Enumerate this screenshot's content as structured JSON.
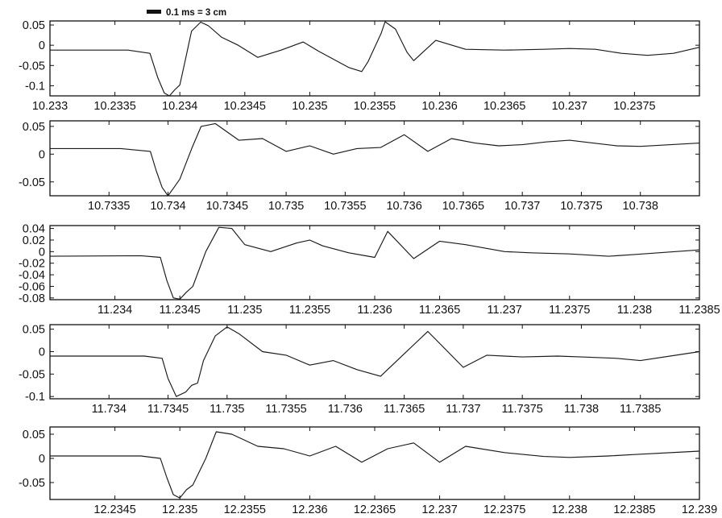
{
  "scale_bar": {
    "label": "0.1 ms = 3 cm"
  },
  "chart_data": [
    {
      "type": "line",
      "xlim": [
        10.233,
        10.238
      ],
      "ylim": [
        -0.125,
        0.06
      ],
      "xticks": [
        10.233,
        10.2335,
        10.234,
        10.2345,
        10.235,
        10.2355,
        10.236,
        10.2365,
        10.237,
        10.2375
      ],
      "xtick_labels": [
        "10.233",
        "10.2335",
        "10.234",
        "10.2345",
        "10.235",
        "10.2355",
        "10.236",
        "10.2365",
        "10.237",
        "10.2375"
      ],
      "yticks": [
        0.05,
        0,
        -0.05,
        -0.1
      ],
      "ytick_labels": [
        "0.05",
        "0",
        "-0.05",
        "-0.1"
      ],
      "series": [
        {
          "x": [
            10.233,
            10.2336,
            10.23377,
            10.23383,
            10.23388,
            10.23392,
            10.23396,
            10.234,
            10.23404,
            10.23409,
            10.23416,
            10.23422,
            10.23432,
            10.23445,
            10.2346,
            10.23478,
            10.23495,
            10.23507,
            10.2353,
            10.2354,
            10.23545,
            10.23555,
            10.23558,
            10.23566,
            10.23575,
            10.2358,
            10.23597,
            10.2362,
            10.2365,
            10.2368,
            10.237,
            10.2372,
            10.2374,
            10.2376,
            10.2378,
            10.238
          ],
          "y": [
            -0.012,
            -0.012,
            -0.02,
            -0.08,
            -0.118,
            -0.125,
            -0.11,
            -0.098,
            -0.04,
            0.035,
            0.057,
            0.048,
            0.02,
            0.0,
            -0.03,
            -0.012,
            0.008,
            -0.015,
            -0.055,
            -0.065,
            -0.04,
            0.03,
            0.058,
            0.04,
            -0.018,
            -0.038,
            0.012,
            -0.01,
            -0.012,
            -0.01,
            -0.008,
            -0.01,
            -0.02,
            -0.025,
            -0.02,
            -0.005
          ]
        }
      ]
    },
    {
      "type": "line",
      "xlim": [
        10.733,
        10.7385
      ],
      "ylim": [
        -0.075,
        0.06
      ],
      "xticks": [
        10.7335,
        10.734,
        10.7345,
        10.735,
        10.7355,
        10.736,
        10.7365,
        10.737,
        10.7375,
        10.738
      ],
      "xtick_labels": [
        "10.7335",
        "10.734",
        "10.7345",
        "10.735",
        "10.7355",
        "10.736",
        "10.7365",
        "10.737",
        "10.7375",
        "10.738"
      ],
      "yticks": [
        0.05,
        0,
        -0.05
      ],
      "ytick_labels": [
        "0.05",
        "0",
        "-0.05"
      ],
      "series": [
        {
          "x": [
            10.733,
            10.7336,
            10.73385,
            10.7339,
            10.73395,
            10.734,
            10.73405,
            10.7341,
            10.7342,
            10.73428,
            10.7344,
            10.7346,
            10.7348,
            10.735,
            10.7352,
            10.7354,
            10.7356,
            10.7358,
            10.736,
            10.7362,
            10.7364,
            10.7366,
            10.7368,
            10.737,
            10.7372,
            10.7374,
            10.7376,
            10.7378,
            10.738,
            10.7385
          ],
          "y": [
            0.01,
            0.01,
            0.005,
            -0.03,
            -0.06,
            -0.075,
            -0.06,
            -0.045,
            0.01,
            0.05,
            0.055,
            0.025,
            0.028,
            0.005,
            0.015,
            0.0,
            0.01,
            0.012,
            0.035,
            0.005,
            0.028,
            0.02,
            0.015,
            0.017,
            0.022,
            0.025,
            0.02,
            0.015,
            0.014,
            0.02
          ]
        }
      ]
    },
    {
      "type": "line",
      "xlim": [
        11.2335,
        11.2385
      ],
      "ylim": [
        -0.083,
        0.045
      ],
      "xticks": [
        11.234,
        11.2345,
        11.235,
        11.2355,
        11.236,
        11.2365,
        11.237,
        11.2375,
        11.238,
        11.2385
      ],
      "xtick_labels": [
        "11.234",
        "11.2345",
        "11.235",
        "11.2355",
        "11.236",
        "11.2365",
        "11.237",
        "11.2375",
        "11.238",
        "11.2385"
      ],
      "yticks": [
        0.04,
        0.02,
        0,
        -0.02,
        -0.04,
        -0.06,
        -0.08
      ],
      "ytick_labels": [
        "0.04",
        "0.02",
        "0",
        "-0.02",
        "-0.04",
        "-0.06",
        "-0.08"
      ],
      "series": [
        {
          "x": [
            11.2335,
            11.2342,
            11.23435,
            11.2344,
            11.23445,
            11.2345,
            11.23455,
            11.2346,
            11.2347,
            11.2348,
            11.2349,
            11.235,
            11.2352,
            11.2354,
            11.2355,
            11.2356,
            11.2358,
            11.236,
            11.2361,
            11.2363,
            11.2365,
            11.2367,
            11.237,
            11.2372,
            11.2375,
            11.2378,
            11.238,
            11.2385
          ],
          "y": [
            -0.008,
            -0.007,
            -0.01,
            -0.05,
            -0.08,
            -0.082,
            -0.07,
            -0.06,
            0.0,
            0.042,
            0.04,
            0.012,
            0.0,
            0.015,
            0.02,
            0.01,
            -0.002,
            -0.01,
            0.035,
            -0.012,
            0.018,
            0.012,
            0.0,
            -0.002,
            -0.004,
            -0.008,
            -0.005,
            0.003
          ]
        }
      ]
    },
    {
      "type": "line",
      "xlim": [
        11.7335,
        11.739
      ],
      "ylim": [
        -0.105,
        0.06
      ],
      "xticks": [
        11.734,
        11.7345,
        11.735,
        11.7355,
        11.736,
        11.7365,
        11.737,
        11.7375,
        11.738,
        11.7385
      ],
      "xtick_labels": [
        "11.734",
        "11.7345",
        "11.735",
        "11.7355",
        "11.736",
        "11.7365",
        "11.737",
        "11.7375",
        "11.738",
        "11.7385"
      ],
      "yticks": [
        0.05,
        0,
        -0.05,
        -0.1
      ],
      "ytick_labels": [
        "0.05",
        "0",
        "-0.05",
        "-0.1"
      ],
      "series": [
        {
          "x": [
            11.7335,
            11.7343,
            11.73445,
            11.7345,
            11.73457,
            11.73465,
            11.7347,
            11.73475,
            11.7348,
            11.7349,
            11.735,
            11.7351,
            11.7353,
            11.7355,
            11.7357,
            11.7359,
            11.7361,
            11.7363,
            11.7365,
            11.7367,
            11.737,
            11.7372,
            11.7375,
            11.7378,
            11.738,
            11.7383,
            11.7385,
            11.739
          ],
          "y": [
            -0.01,
            -0.01,
            -0.015,
            -0.06,
            -0.1,
            -0.09,
            -0.075,
            -0.07,
            -0.02,
            0.035,
            0.055,
            0.04,
            0.0,
            -0.008,
            -0.03,
            -0.02,
            -0.04,
            -0.055,
            -0.005,
            0.045,
            -0.035,
            -0.008,
            -0.012,
            -0.01,
            -0.012,
            -0.015,
            -0.02,
            0.0
          ]
        }
      ]
    },
    {
      "type": "line",
      "xlim": [
        12.234,
        12.239
      ],
      "ylim": [
        -0.085,
        0.065
      ],
      "xticks": [
        12.2345,
        12.235,
        12.2355,
        12.236,
        12.2365,
        12.237,
        12.2375,
        12.238,
        12.2385,
        12.239
      ],
      "xtick_labels": [
        "12.2345",
        "12.235",
        "12.2355",
        "12.236",
        "12.2365",
        "12.237",
        "12.2375",
        "12.238",
        "12.2385",
        "12.239"
      ],
      "yticks": [
        0.05,
        0,
        -0.05
      ],
      "ytick_labels": [
        "0.05",
        "0",
        "-0.05"
      ],
      "series": [
        {
          "x": [
            12.234,
            12.2347,
            12.23485,
            12.2349,
            12.23495,
            12.235,
            12.23505,
            12.2351,
            12.2352,
            12.23528,
            12.2354,
            12.2356,
            12.2358,
            12.236,
            12.2362,
            12.2364,
            12.2366,
            12.2368,
            12.237,
            12.2372,
            12.2375,
            12.2378,
            12.238,
            12.2383,
            12.2385,
            12.239
          ],
          "y": [
            0.005,
            0.005,
            0.0,
            -0.04,
            -0.075,
            -0.082,
            -0.065,
            -0.055,
            0.0,
            0.055,
            0.05,
            0.025,
            0.02,
            0.005,
            0.025,
            -0.008,
            0.02,
            0.032,
            -0.008,
            0.025,
            0.012,
            0.004,
            0.002,
            0.005,
            0.008,
            0.015
          ]
        }
      ]
    }
  ]
}
